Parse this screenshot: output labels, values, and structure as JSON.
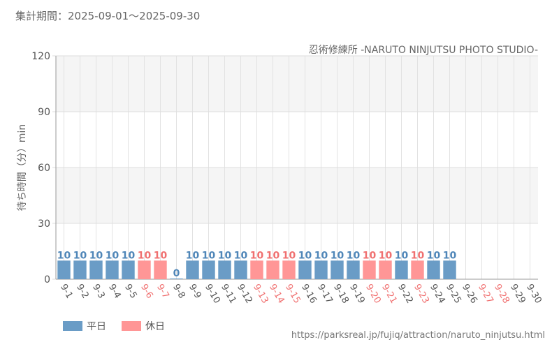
{
  "header": {
    "period": "集計期間：2025-09-01～2025-09-30",
    "attraction": "忍術修練所 -NARUTO NINJUTSU PHOTO STUDIO-"
  },
  "footer": {
    "source": "https://parksreal.jp/fujiq/attraction/naruto_ninjutsu.html"
  },
  "colors": {
    "weekday": "#6a9cc6",
    "holiday": "#ff9696",
    "weekday_label": "#4f86b8",
    "holiday_label": "#f07070"
  },
  "chart_data": {
    "type": "bar",
    "ylabel": "待ち時間（分）min",
    "ylim": [
      0,
      120
    ],
    "yticks": [
      0,
      30,
      60,
      90,
      120
    ],
    "grid": true,
    "legend": "bottom-left",
    "legend_entries": [
      "平日",
      "休日"
    ],
    "categories": [
      "9-1",
      "9-2",
      "9-3",
      "9-4",
      "9-5",
      "9-6",
      "9-7",
      "9-8",
      "9-9",
      "9-10",
      "9-11",
      "9-12",
      "9-13",
      "9-14",
      "9-15",
      "9-16",
      "9-17",
      "9-18",
      "9-19",
      "9-20",
      "9-21",
      "9-22",
      "9-23",
      "9-24",
      "9-25",
      "9-26",
      "9-27",
      "9-28",
      "9-29",
      "9-30"
    ],
    "day_type": [
      "平日",
      "平日",
      "平日",
      "平日",
      "平日",
      "休日",
      "休日",
      "平日",
      "平日",
      "平日",
      "平日",
      "平日",
      "休日",
      "休日",
      "休日",
      "平日",
      "平日",
      "平日",
      "平日",
      "休日",
      "休日",
      "平日",
      "休日",
      "平日",
      "平日",
      "平日",
      "休日",
      "休日",
      "平日",
      "平日"
    ],
    "values": [
      10,
      10,
      10,
      10,
      10,
      10,
      10,
      0,
      10,
      10,
      10,
      10,
      10,
      10,
      10,
      10,
      10,
      10,
      10,
      10,
      10,
      10,
      10,
      10,
      10,
      null,
      null,
      null,
      null,
      null
    ]
  }
}
